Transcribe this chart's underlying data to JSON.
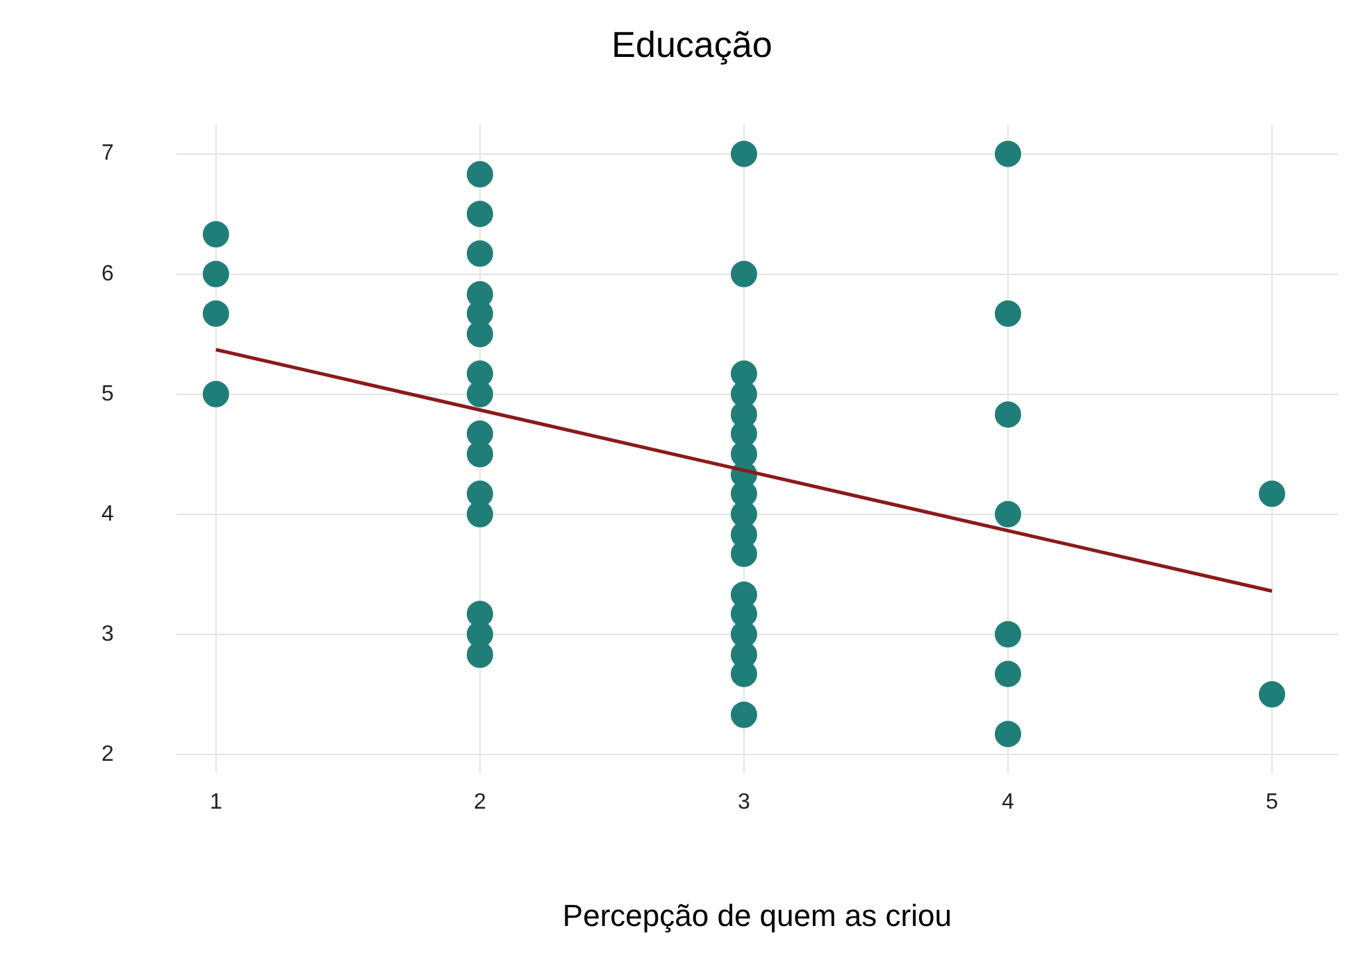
{
  "chart_data": {
    "type": "scatter",
    "title": "Educação",
    "xlabel": "Percepção de quem as criou",
    "xlim": [
      0.85,
      5.25
    ],
    "xticks": [
      1,
      2,
      3,
      4,
      5
    ],
    "ylim": [
      1.85,
      7.25
    ],
    "yticks": [
      2,
      3,
      4,
      5,
      6,
      7
    ],
    "grid": true,
    "legend": false,
    "marker": "circle",
    "series": [
      {
        "type": "scatter",
        "color": "#1f7f78",
        "x": [
          1,
          1,
          1,
          1,
          2,
          2,
          2,
          2,
          2,
          2,
          2,
          2,
          2,
          2,
          2,
          2,
          2,
          2,
          2,
          3,
          3,
          3,
          3,
          3,
          3,
          3,
          3,
          3,
          3,
          3,
          3,
          3,
          3,
          3,
          3,
          3,
          3,
          4,
          4,
          4,
          4,
          4,
          4,
          4,
          5,
          5
        ],
        "values": [
          6.33,
          6.0,
          5.67,
          5.0,
          6.83,
          6.5,
          6.17,
          5.83,
          5.67,
          5.5,
          5.17,
          5.0,
          4.67,
          4.5,
          4.17,
          4.0,
          3.17,
          3.0,
          2.83,
          7.0,
          6.0,
          5.17,
          5.0,
          4.83,
          4.67,
          4.5,
          4.33,
          4.17,
          4.0,
          3.83,
          3.67,
          3.33,
          3.17,
          3.0,
          2.83,
          2.67,
          2.33,
          7.0,
          5.67,
          4.83,
          4.0,
          3.0,
          2.67,
          2.17,
          4.17,
          2.5
        ]
      },
      {
        "type": "line",
        "color": "#8b1a1a",
        "x": [
          1,
          5
        ],
        "values": [
          5.37,
          3.36
        ],
        "marker": "none"
      }
    ]
  }
}
